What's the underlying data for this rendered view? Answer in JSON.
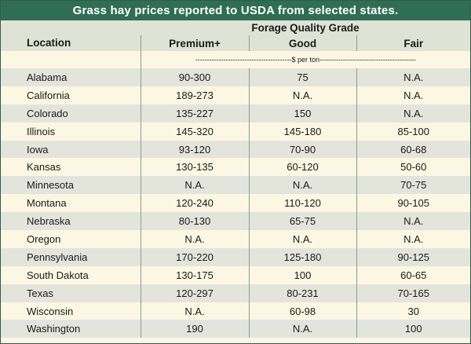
{
  "title": "Grass hay prices reported to USDA from selected states.",
  "headers": {
    "location": "Location",
    "group": "Forage Quality Grade",
    "grades": [
      "Premium+",
      "Good",
      "Fair"
    ]
  },
  "unit_line": "-----------------------------------------$ per ton-----------------------------------------",
  "rows": [
    {
      "location": "Alabama",
      "premium": "90-300",
      "good": "75",
      "fair": "N.A."
    },
    {
      "location": "California",
      "premium": "189-273",
      "good": "N.A.",
      "fair": "N.A."
    },
    {
      "location": "Colorado",
      "premium": "135-227",
      "good": "150",
      "fair": "N.A."
    },
    {
      "location": "Illinois",
      "premium": "145-320",
      "good": "145-180",
      "fair": "85-100"
    },
    {
      "location": "Iowa",
      "premium": "93-120",
      "good": "70-90",
      "fair": "60-68"
    },
    {
      "location": "Kansas",
      "premium": "130-135",
      "good": "60-120",
      "fair": "50-60"
    },
    {
      "location": "Minnesota",
      "premium": "N.A.",
      "good": "N.A.",
      "fair": "70-75"
    },
    {
      "location": "Montana",
      "premium": "120-240",
      "good": "110-120",
      "fair": "90-105"
    },
    {
      "location": "Nebraska",
      "premium": "80-130",
      "good": "65-75",
      "fair": "N.A."
    },
    {
      "location": "Oregon",
      "premium": "N.A.",
      "good": "N.A.",
      "fair": "N.A."
    },
    {
      "location": "Pennsylvania",
      "premium": "170-220",
      "good": "125-180",
      "fair": "90-125"
    },
    {
      "location": "South Dakota",
      "premium": "130-175",
      "good": "100",
      "fair": "60-65"
    },
    {
      "location": "Texas",
      "premium": "120-297",
      "good": "80-231",
      "fair": "70-165"
    },
    {
      "location": "Wisconsin",
      "premium": "N.A.",
      "good": "60-98",
      "fair": "30"
    },
    {
      "location": "Washington",
      "premium": "190",
      "good": "N.A.",
      "fair": "100"
    }
  ]
}
